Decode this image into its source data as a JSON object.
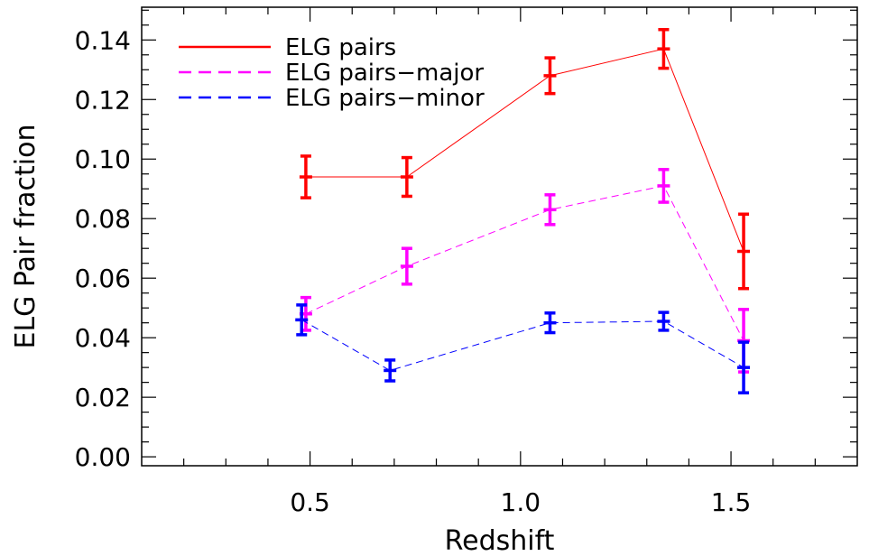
{
  "chart_data": {
    "type": "line",
    "title": "",
    "xlabel": "Redshift",
    "ylabel": "ELG Pair fraction",
    "xlim": [
      0.1,
      1.8
    ],
    "ylim": [
      -0.003,
      0.151
    ],
    "grid": false,
    "legend_position": "top-left",
    "x_ticks": [
      {
        "value": 0.5,
        "label": "0.5"
      },
      {
        "value": 1.0,
        "label": "1.0"
      },
      {
        "value": 1.5,
        "label": "1.5"
      }
    ],
    "y_ticks": [
      {
        "value": 0.0,
        "label": "0.00"
      },
      {
        "value": 0.02,
        "label": "0.02"
      },
      {
        "value": 0.04,
        "label": "0.04"
      },
      {
        "value": 0.06,
        "label": "0.06"
      },
      {
        "value": 0.08,
        "label": "0.08"
      },
      {
        "value": 0.1,
        "label": "0.10"
      },
      {
        "value": 0.12,
        "label": "0.12"
      },
      {
        "value": 0.14,
        "label": "0.14"
      }
    ],
    "series": [
      {
        "name": "ELG pairs",
        "color": "#ff0000",
        "dash": "solid",
        "points": [
          {
            "x": 0.49,
            "y": 0.094,
            "err": 0.007
          },
          {
            "x": 0.73,
            "y": 0.094,
            "err": 0.0065
          },
          {
            "x": 1.07,
            "y": 0.128,
            "err": 0.006
          },
          {
            "x": 1.34,
            "y": 0.137,
            "err": 0.0065
          },
          {
            "x": 1.53,
            "y": 0.069,
            "err": 0.0125
          }
        ]
      },
      {
        "name": "ELG pairs−major",
        "color": "#ff00ff",
        "dash": "dashed",
        "points": [
          {
            "x": 0.49,
            "y": 0.048,
            "err": 0.0055
          },
          {
            "x": 0.73,
            "y": 0.064,
            "err": 0.006
          },
          {
            "x": 1.07,
            "y": 0.083,
            "err": 0.005
          },
          {
            "x": 1.34,
            "y": 0.091,
            "err": 0.0055
          },
          {
            "x": 1.53,
            "y": 0.039,
            "err": 0.0105
          }
        ]
      },
      {
        "name": "ELG pairs−minor",
        "color": "#0000ff",
        "dash": "dashed",
        "points": [
          {
            "x": 0.48,
            "y": 0.046,
            "err": 0.005
          },
          {
            "x": 0.69,
            "y": 0.029,
            "err": 0.0035
          },
          {
            "x": 1.07,
            "y": 0.045,
            "err": 0.0033
          },
          {
            "x": 1.34,
            "y": 0.0455,
            "err": 0.003
          },
          {
            "x": 1.53,
            "y": 0.03,
            "err": 0.0085
          }
        ]
      }
    ]
  }
}
